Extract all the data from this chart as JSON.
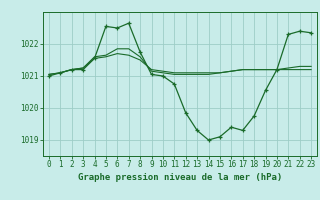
{
  "title": "Graphe pression niveau de la mer (hPa)",
  "bg_color": "#c8ece9",
  "grid_color": "#9ecdc7",
  "line_color": "#1a6b2a",
  "line1": {
    "x": [
      0,
      1,
      2,
      3,
      4,
      5,
      6,
      7,
      8,
      9,
      10,
      11,
      12,
      13,
      14,
      15,
      16,
      17,
      18,
      19,
      20,
      21,
      22,
      23
    ],
    "y": [
      1021.0,
      1021.1,
      1021.2,
      1021.2,
      1021.55,
      1022.55,
      1022.5,
      1022.65,
      1021.75,
      1021.05,
      1021.0,
      1020.75,
      1019.85,
      1019.3,
      1019.0,
      1019.1,
      1019.4,
      1019.3,
      1019.75,
      1020.55,
      1021.2,
      1022.3,
      1022.4,
      1022.35
    ]
  },
  "line2": {
    "x": [
      0,
      1,
      2,
      3,
      4,
      5,
      6,
      7,
      8,
      9,
      10,
      11,
      12,
      13,
      14,
      15,
      16,
      17,
      18,
      19,
      20,
      21,
      22,
      23
    ],
    "y": [
      1021.05,
      1021.1,
      1021.2,
      1021.25,
      1021.6,
      1021.65,
      1021.85,
      1021.85,
      1021.6,
      1021.15,
      1021.1,
      1021.05,
      1021.05,
      1021.05,
      1021.05,
      1021.1,
      1021.15,
      1021.2,
      1021.2,
      1021.2,
      1021.2,
      1021.25,
      1021.3,
      1021.3
    ]
  },
  "line3": {
    "x": [
      0,
      1,
      2,
      3,
      4,
      5,
      6,
      7,
      8,
      9,
      10,
      11,
      12,
      13,
      14,
      15,
      16,
      17,
      18,
      19,
      20,
      21,
      22,
      23
    ],
    "y": [
      1021.05,
      1021.1,
      1021.2,
      1021.25,
      1021.55,
      1021.6,
      1021.7,
      1021.65,
      1021.5,
      1021.2,
      1021.15,
      1021.1,
      1021.1,
      1021.1,
      1021.1,
      1021.1,
      1021.15,
      1021.2,
      1021.2,
      1021.2,
      1021.2,
      1021.2,
      1021.2,
      1021.2
    ]
  },
  "ylim": [
    1018.5,
    1023.0
  ],
  "yticks": [
    1019,
    1020,
    1021,
    1022
  ],
  "xticks": [
    0,
    1,
    2,
    3,
    4,
    5,
    6,
    7,
    8,
    9,
    10,
    11,
    12,
    13,
    14,
    15,
    16,
    17,
    18,
    19,
    20,
    21,
    22,
    23
  ],
  "title_fontsize": 6.5,
  "tick_fontsize": 5.5
}
